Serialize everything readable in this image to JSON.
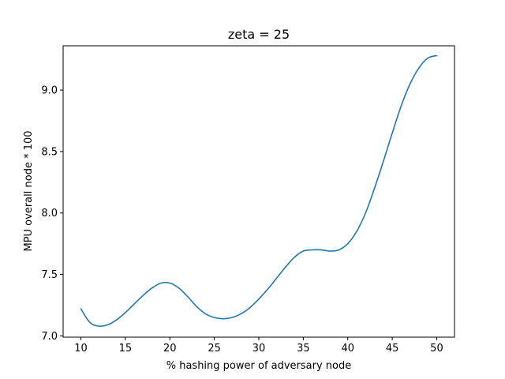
{
  "chart_data": {
    "type": "line",
    "title": "zeta = 25",
    "xlabel": "% hashing power of adversary node",
    "ylabel": "MPU overall node * 100",
    "xlim": [
      8,
      52
    ],
    "ylim": [
      6.99,
      9.36
    ],
    "x_ticks": [
      10,
      15,
      20,
      25,
      30,
      35,
      40,
      45,
      50
    ],
    "y_ticks": [
      7.0,
      7.5,
      8.0,
      8.5,
      9.0
    ],
    "y_tick_labels": [
      "7.0",
      "7.5",
      "8.0",
      "8.5",
      "9.0"
    ],
    "grid": false,
    "series": [
      {
        "color": "#1f77b4",
        "x": [
          10,
          11,
          12,
          13,
          14,
          15,
          16,
          17,
          18,
          19,
          20,
          21,
          22,
          23,
          24,
          25,
          26,
          27,
          28,
          29,
          30,
          31,
          32,
          33,
          34,
          35,
          36,
          37,
          38,
          39,
          40,
          41,
          42,
          43,
          44,
          45,
          46,
          47,
          48,
          49,
          50
        ],
        "y": [
          7.22,
          7.11,
          7.08,
          7.09,
          7.13,
          7.19,
          7.26,
          7.33,
          7.39,
          7.43,
          7.43,
          7.39,
          7.32,
          7.24,
          7.18,
          7.15,
          7.14,
          7.15,
          7.18,
          7.23,
          7.3,
          7.38,
          7.47,
          7.56,
          7.64,
          7.69,
          7.7,
          7.7,
          7.69,
          7.7,
          7.75,
          7.85,
          8.0,
          8.2,
          8.42,
          8.65,
          8.87,
          9.05,
          9.18,
          9.26,
          9.28
        ]
      }
    ]
  }
}
